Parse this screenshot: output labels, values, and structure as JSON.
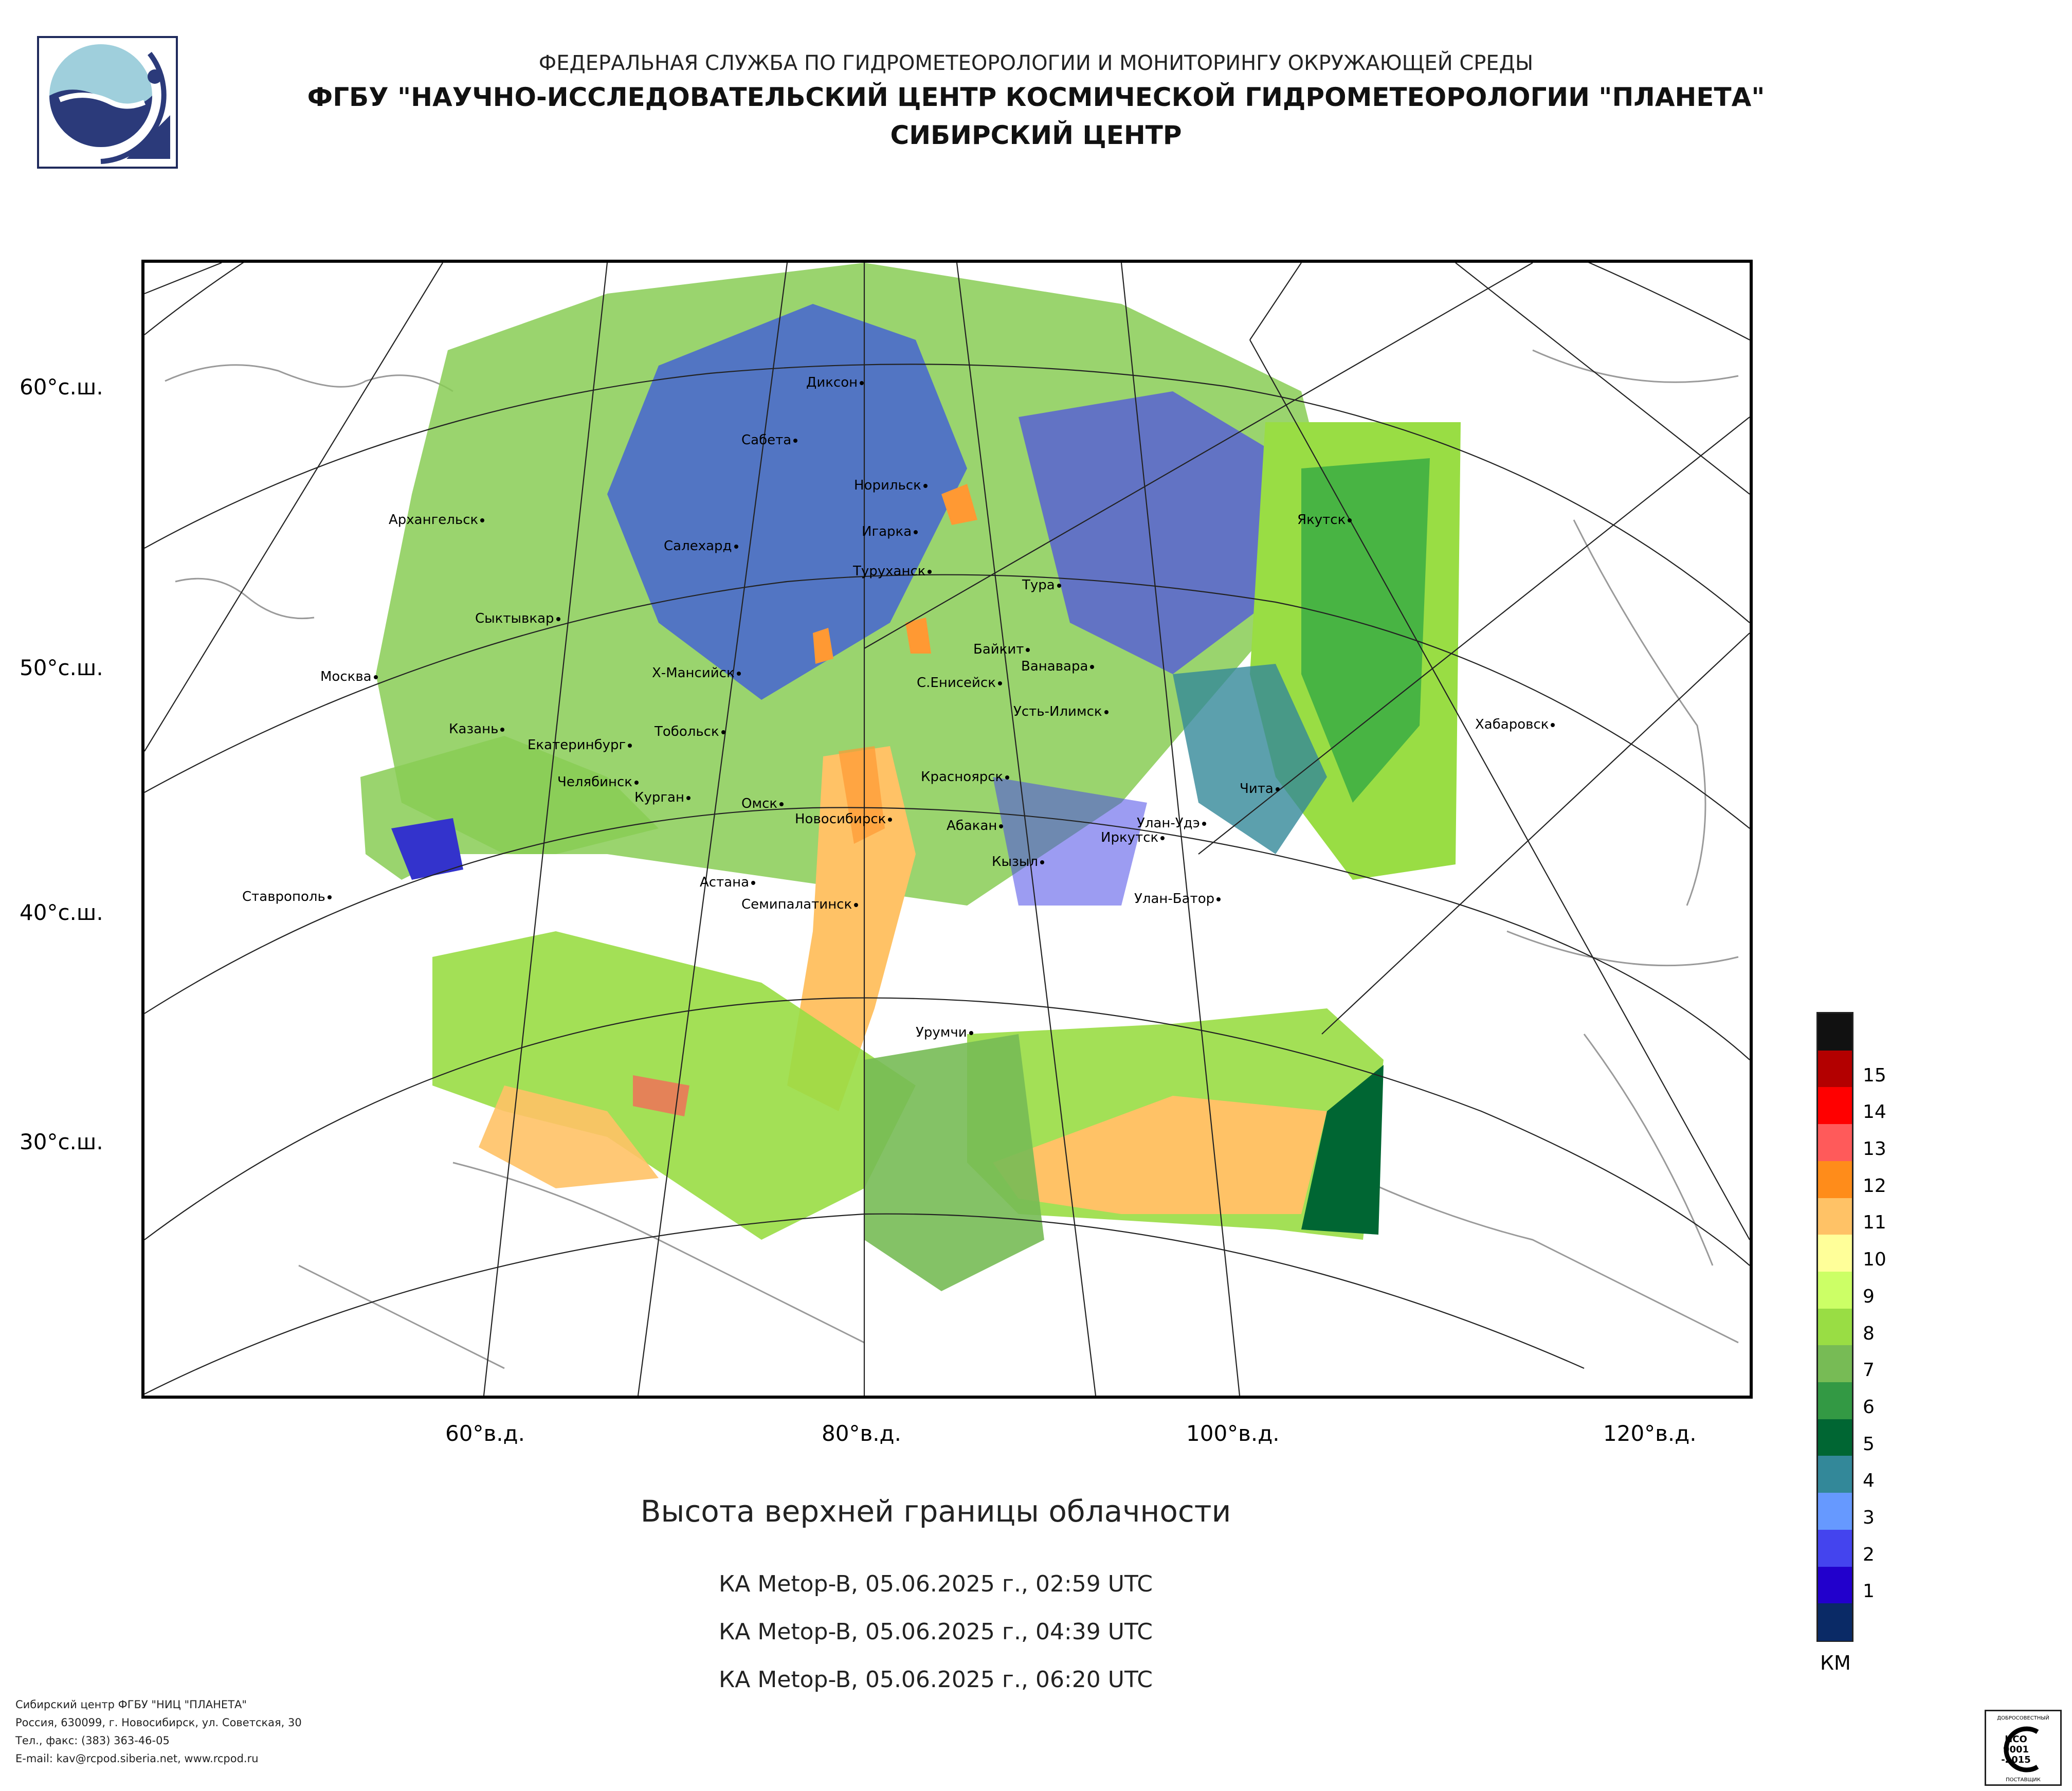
{
  "header": {
    "line1": "ФЕДЕРАЛЬНАЯ СЛУЖБА ПО ГИДРОМЕТЕОРОЛОГИИ И МОНИТОРИНГУ ОКРУЖАЮЩЕЙ СРЕДЫ",
    "line2": "ФГБУ \"НАУЧНО-ИССЛЕДОВАТЕЛЬСКИЙ ЦЕНТР КОСМИЧЕСКОЙ ГИДРОМЕТЕОРОЛОГИИ \"ПЛАНЕТА\"",
    "line3": "СИБИРСКИЙ ЦЕНТР"
  },
  "map": {
    "lat_labels": [
      "60°с.ш.",
      "50°с.ш.",
      "40°с.ш.",
      "30°с.ш."
    ],
    "lon_labels": [
      "60°в.д.",
      "80°в.д.",
      "100°в.д.",
      "120°в.д."
    ],
    "cities": [
      "Диксон",
      "Сабета",
      "Норильск",
      "Игарка",
      "Туруханск",
      "Салехард",
      "Архангельск",
      "Якутск",
      "Тура",
      "Сыктывкар",
      "Байкит",
      "Ванавара",
      "Москва",
      "Х-Мансийск",
      "С.Енисейск",
      "Усть-Илимск",
      "Хабаровск",
      "Казань",
      "Тобольск",
      "Екатеринбург",
      "Красноярск",
      "Челябинск",
      "Чита",
      "Курган",
      "Омск",
      "Новосибирск",
      "Абакан",
      "Улан-Удэ",
      "Иркутск",
      "Кызыл",
      "Астана",
      "Ставрополь",
      "Семипалатинск",
      "Улан-Батор",
      "Урумчи"
    ]
  },
  "titles": {
    "main": "Высота верхней границы облачности",
    "passes": [
      "КА Metop-B, 05.06.2025 г., 02:59 UTC",
      "КА Metop-B, 05.06.2025 г., 04:39 UTC",
      "КА Metop-B, 05.06.2025 г., 06:20 UTC"
    ]
  },
  "legend": {
    "unit": "КМ",
    "levels": [
      {
        "label": "",
        "color": "#111111"
      },
      {
        "label": "15",
        "color": "#b30000"
      },
      {
        "label": "14",
        "color": "#ff0000"
      },
      {
        "label": "13",
        "color": "#ff5a5a"
      },
      {
        "label": "12",
        "color": "#ff8c1a"
      },
      {
        "label": "11",
        "color": "#ffc266"
      },
      {
        "label": "10",
        "color": "#ffff99"
      },
      {
        "label": "9",
        "color": "#ccff66"
      },
      {
        "label": "8",
        "color": "#99dd44"
      },
      {
        "label": "7",
        "color": "#77bb55"
      },
      {
        "label": "6",
        "color": "#339944"
      },
      {
        "label": "5",
        "color": "#006633"
      },
      {
        "label": "4",
        "color": "#338899"
      },
      {
        "label": "3",
        "color": "#6699ff"
      },
      {
        "label": "2",
        "color": "#4444ee"
      },
      {
        "label": "1",
        "color": "#2200cc"
      },
      {
        "label": "",
        "color": "#0a2a66"
      }
    ]
  },
  "footer": {
    "lines": [
      "Сибирский центр ФГБУ \"НИЦ \"ПЛАНЕТА\"",
      "Россия, 630099, г. Новосибирск, ул. Советская, 30",
      "Тел., факс: (383) 363-46-05",
      "E-mail: kav@rcpod.siberia.net, www.rcpod.ru"
    ],
    "iso_top": "ДОБРОСОВЕСТНЫЙ",
    "iso_line1": "ИСО",
    "iso_line2": "9001",
    "iso_line3": "-2015",
    "iso_bottom": "ПОСТАВЩИК"
  }
}
